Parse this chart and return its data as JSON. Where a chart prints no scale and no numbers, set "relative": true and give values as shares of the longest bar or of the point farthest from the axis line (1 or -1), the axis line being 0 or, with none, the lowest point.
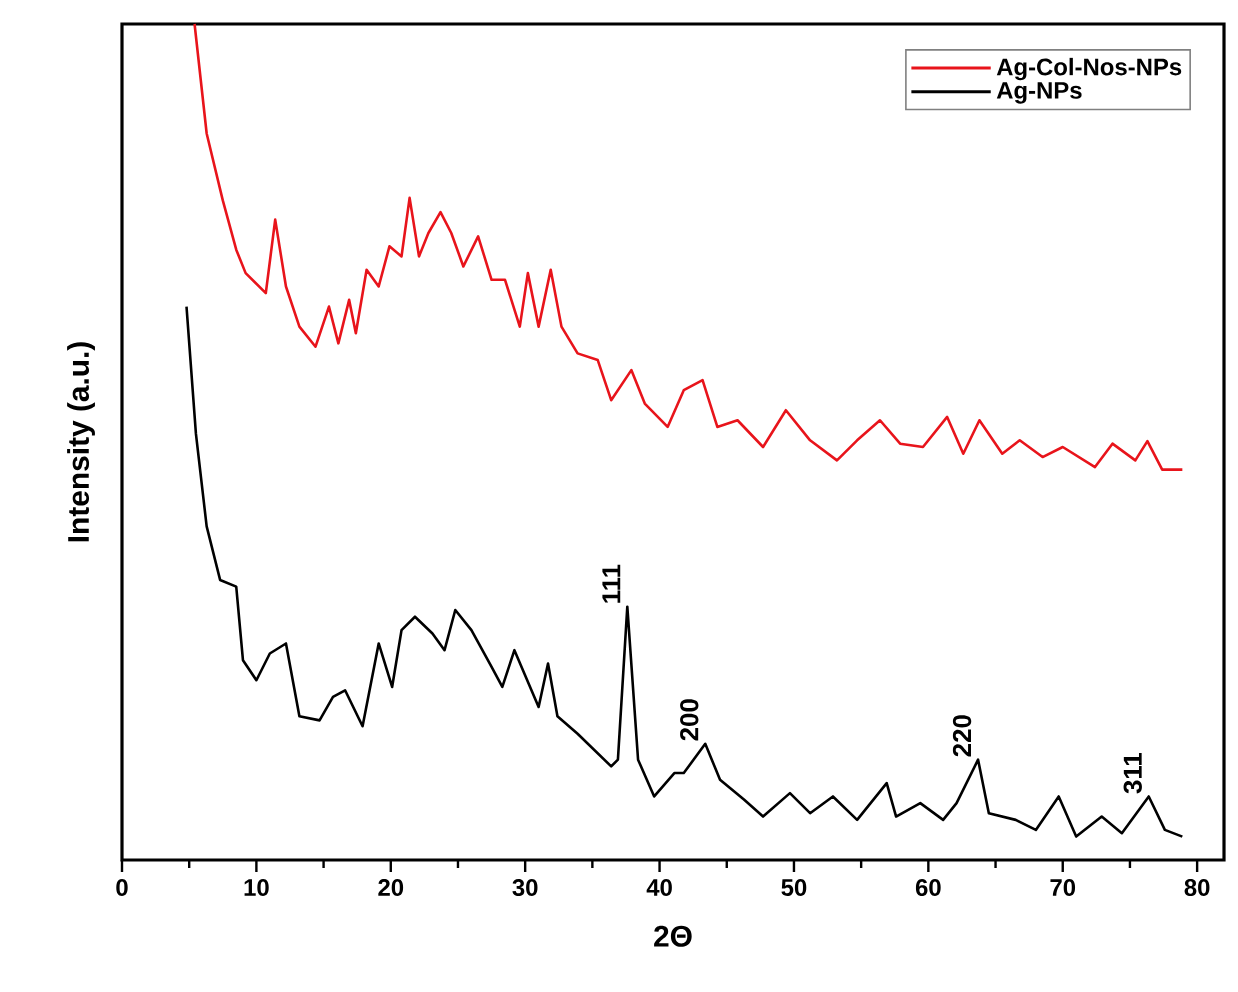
{
  "chart_data": {
    "type": "line",
    "relative": true,
    "xlabel": "2Θ",
    "ylabel": "Intensity (a.u.)",
    "xlim": [
      0,
      82
    ],
    "xticks": [
      0,
      10,
      20,
      30,
      40,
      50,
      60,
      70,
      80
    ],
    "legend": "top right",
    "series": [
      {
        "name": "Ag-Col-Nos-NPs",
        "color": "#e8141b",
        "x": [
          5.4,
          6.3,
          7.5,
          8.5,
          9.2,
          10.7,
          11.4,
          12.2,
          13.2,
          14.4,
          15.4,
          16.1,
          16.9,
          17.4,
          18.2,
          19.1,
          19.9,
          20.8,
          21.4,
          22.1,
          22.8,
          23.7,
          24.5,
          25.4,
          26.5,
          27.5,
          28.5,
          29.6,
          30.2,
          31.0,
          31.9,
          32.7,
          33.9,
          35.4,
          36.4,
          37.9,
          38.9,
          40.6,
          41.8,
          43.2,
          44.3,
          45.8,
          47.7,
          49.4,
          51.2,
          53.2,
          54.7,
          56.4,
          57.9,
          59.6,
          61.4,
          62.6,
          63.8,
          65.5,
          66.8,
          68.5,
          70.0,
          72.4,
          73.7,
          75.4,
          76.3,
          77.4,
          78.9
        ],
        "values": [
          1.0,
          0.869,
          0.789,
          0.73,
          0.702,
          0.678,
          0.766,
          0.686,
          0.638,
          0.614,
          0.662,
          0.618,
          0.67,
          0.63,
          0.706,
          0.686,
          0.734,
          0.722,
          0.792,
          0.722,
          0.75,
          0.775,
          0.75,
          0.71,
          0.746,
          0.694,
          0.694,
          0.638,
          0.702,
          0.638,
          0.706,
          0.638,
          0.606,
          0.598,
          0.55,
          0.586,
          0.546,
          0.518,
          0.562,
          0.574,
          0.518,
          0.526,
          0.494,
          0.538,
          0.502,
          0.478,
          0.502,
          0.526,
          0.498,
          0.494,
          0.53,
          0.486,
          0.526,
          0.486,
          0.502,
          0.482,
          0.494,
          0.47,
          0.498,
          0.478,
          0.501,
          0.467,
          0.467
        ]
      },
      {
        "name": "Ag-NPs",
        "color": "#000000",
        "x": [
          4.8,
          5.5,
          6.3,
          7.3,
          8.5,
          9.0,
          10.0,
          11.0,
          12.2,
          13.2,
          14.7,
          15.7,
          16.6,
          17.9,
          19.1,
          20.1,
          20.8,
          21.8,
          23.1,
          24.0,
          24.8,
          26.0,
          27.5,
          28.3,
          29.2,
          31.0,
          31.7,
          32.4,
          33.9,
          36.4,
          36.9,
          37.6,
          38.4,
          39.6,
          41.1,
          41.8,
          43.4,
          44.5,
          46.3,
          47.7,
          49.7,
          51.2,
          52.9,
          54.7,
          56.9,
          57.6,
          59.4,
          61.1,
          62.1,
          63.7,
          64.5,
          66.5,
          68.0,
          69.7,
          71.0,
          72.9,
          74.4,
          76.4,
          77.6,
          78.9
        ],
        "values": [
          0.662,
          0.51,
          0.399,
          0.335,
          0.327,
          0.239,
          0.215,
          0.247,
          0.259,
          0.172,
          0.167,
          0.195,
          0.203,
          0.16,
          0.259,
          0.207,
          0.275,
          0.291,
          0.271,
          0.251,
          0.299,
          0.275,
          0.231,
          0.207,
          0.251,
          0.183,
          0.235,
          0.172,
          0.151,
          0.112,
          0.12,
          0.303,
          0.12,
          0.076,
          0.104,
          0.104,
          0.139,
          0.096,
          0.072,
          0.052,
          0.08,
          0.056,
          0.076,
          0.048,
          0.092,
          0.052,
          0.068,
          0.048,
          0.068,
          0.12,
          0.056,
          0.048,
          0.036,
          0.076,
          0.028,
          0.052,
          0.032,
          0.076,
          0.036,
          0.028
        ]
      }
    ],
    "annotations": [
      {
        "text": "111",
        "x": 37.6,
        "y": 0.303
      },
      {
        "text": "200",
        "x": 43.4,
        "y": 0.139
      },
      {
        "text": "220",
        "x": 63.7,
        "y": 0.12
      },
      {
        "text": "311",
        "x": 76.4,
        "y": 0.076
      }
    ]
  }
}
